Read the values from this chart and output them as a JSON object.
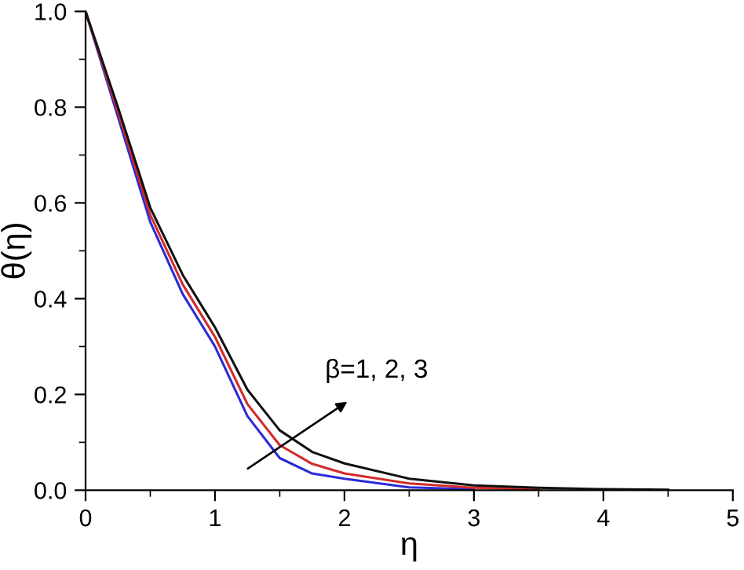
{
  "chart_data": {
    "type": "line",
    "xlabel": "η",
    "ylabel": "θ(η)",
    "xlim": [
      0,
      5
    ],
    "ylim": [
      0,
      1.0
    ],
    "xticks": [
      0,
      1,
      2,
      3,
      4,
      5
    ],
    "yticks": [
      {
        "value": 0,
        "label": "0.0"
      },
      0.2,
      0.4,
      0.6,
      0.8,
      {
        "value": 1.0,
        "label": "1.0"
      }
    ],
    "grid": false,
    "marker": "none",
    "line_style": "solid",
    "annotations": [
      "β=1, 2, 3"
    ],
    "series": [
      {
        "color": "#2b2bd6",
        "x": [
          0,
          0.25,
          0.5,
          0.75,
          1,
          1.25,
          1.5,
          1.75,
          2,
          2.5,
          3
        ],
        "values": [
          1.0,
          0.78,
          0.56,
          0.41,
          0.3,
          0.155,
          0.067,
          0.035,
          0.024,
          0.006,
          0.002
        ]
      },
      {
        "color": "#d42a2a",
        "x": [
          0,
          0.25,
          0.5,
          0.75,
          1,
          1.25,
          1.5,
          1.75,
          2,
          2.5,
          3,
          3.5
        ],
        "values": [
          1.0,
          0.79,
          0.575,
          0.43,
          0.32,
          0.18,
          0.094,
          0.055,
          0.035,
          0.014,
          0.005,
          0.002
        ]
      },
      {
        "color": "#111111",
        "x": [
          0,
          0.25,
          0.5,
          0.75,
          1,
          1.25,
          1.5,
          1.75,
          2,
          2.5,
          3,
          3.5,
          4,
          4.5
        ],
        "values": [
          1.0,
          0.8,
          0.59,
          0.45,
          0.34,
          0.21,
          0.125,
          0.08,
          0.056,
          0.024,
          0.01,
          0.005,
          0.002,
          0.001
        ]
      }
    ]
  }
}
